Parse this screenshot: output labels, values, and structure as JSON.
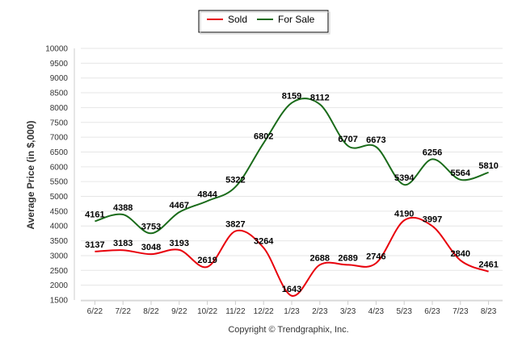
{
  "chart_data": {
    "type": "line",
    "ylabel": "Average Price (in $,000)",
    "xlabel": "",
    "credit": "Copyright © Trendgraphix, Inc.",
    "categories": [
      "6/22",
      "7/22",
      "8/22",
      "9/22",
      "10/22",
      "11/22",
      "12/22",
      "1/23",
      "2/23",
      "3/23",
      "4/23",
      "5/23",
      "6/23",
      "7/23",
      "8/23"
    ],
    "ylim": [
      1500,
      10000
    ],
    "yticks": [
      1500,
      2000,
      2500,
      3000,
      3500,
      4000,
      4500,
      5000,
      5500,
      6000,
      6500,
      7000,
      7500,
      8000,
      8500,
      9000,
      9500,
      10000
    ],
    "grid": true,
    "legend_position": "top-center",
    "series": [
      {
        "name": "Sold",
        "color": "#e8000b",
        "values": [
          3137,
          3183,
          3048,
          3193,
          2619,
          3827,
          3264,
          1643,
          2688,
          2689,
          2746,
          4190,
          3997,
          2840,
          2461
        ]
      },
      {
        "name": "For Sale",
        "color": "#1a6b1a",
        "values": [
          4161,
          4388,
          3753,
          4467,
          4844,
          5322,
          6802,
          8159,
          8112,
          6707,
          6673,
          5394,
          6256,
          5564,
          5810
        ]
      }
    ]
  }
}
